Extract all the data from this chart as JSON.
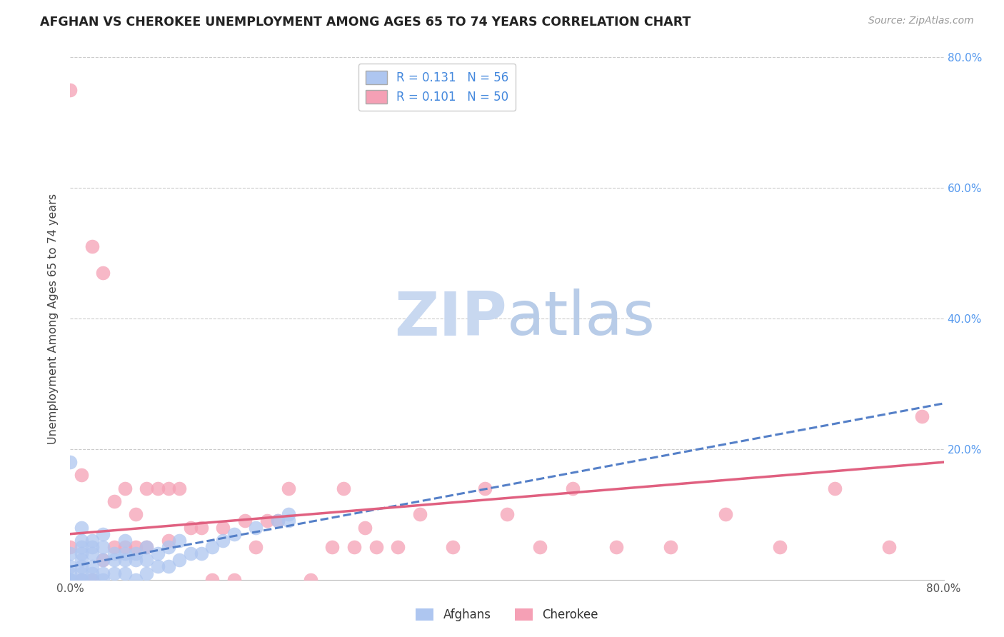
{
  "title": "AFGHAN VS CHEROKEE UNEMPLOYMENT AMONG AGES 65 TO 74 YEARS CORRELATION CHART",
  "source": "Source: ZipAtlas.com",
  "ylabel": "Unemployment Among Ages 65 to 74 years",
  "xlim": [
    0,
    0.8
  ],
  "ylim": [
    0,
    0.8
  ],
  "xticks": [
    0.0,
    0.2,
    0.4,
    0.6,
    0.8
  ],
  "xticklabels": [
    "0.0%",
    "",
    "",
    "",
    "80.0%"
  ],
  "right_yticklabels": [
    "20.0%",
    "40.0%",
    "60.0%",
    "80.0%"
  ],
  "right_yticks": [
    0.2,
    0.4,
    0.6,
    0.8
  ],
  "afghan_R": 0.131,
  "afghan_N": 56,
  "cherokee_R": 0.101,
  "cherokee_N": 50,
  "afghan_color": "#aec6f0",
  "cherokee_color": "#f5a0b5",
  "afghan_line_color": "#5580c8",
  "cherokee_line_color": "#e06080",
  "watermark_zip": "ZIP",
  "watermark_atlas": "atlas",
  "watermark_color_zip": "#c8d8f0",
  "watermark_color_atlas": "#c0d8e8",
  "background_color": "#ffffff",
  "grid_color": "#cccccc",
  "afghan_x": [
    0.0,
    0.0,
    0.0,
    0.0,
    0.0,
    0.0,
    0.0,
    0.0,
    0.01,
    0.01,
    0.01,
    0.01,
    0.01,
    0.01,
    0.01,
    0.01,
    0.02,
    0.02,
    0.02,
    0.02,
    0.02,
    0.03,
    0.03,
    0.03,
    0.03,
    0.04,
    0.04,
    0.05,
    0.05,
    0.05,
    0.06,
    0.06,
    0.07,
    0.07,
    0.08,
    0.08,
    0.09,
    0.09,
    0.1,
    0.1,
    0.11,
    0.12,
    0.13,
    0.14,
    0.15,
    0.17,
    0.19,
    0.2,
    0.2,
    0.01,
    0.02,
    0.03,
    0.04,
    0.05,
    0.06,
    0.07
  ],
  "afghan_y": [
    0.0,
    0.0,
    0.0,
    0.0,
    0.01,
    0.02,
    0.04,
    0.18,
    0.0,
    0.0,
    0.01,
    0.02,
    0.03,
    0.04,
    0.05,
    0.08,
    0.0,
    0.01,
    0.02,
    0.04,
    0.06,
    0.0,
    0.01,
    0.03,
    0.07,
    0.01,
    0.04,
    0.01,
    0.03,
    0.06,
    0.0,
    0.03,
    0.01,
    0.03,
    0.02,
    0.04,
    0.02,
    0.05,
    0.03,
    0.06,
    0.04,
    0.04,
    0.05,
    0.06,
    0.07,
    0.08,
    0.09,
    0.09,
    0.1,
    0.06,
    0.05,
    0.05,
    0.03,
    0.04,
    0.04,
    0.05
  ],
  "cherokee_x": [
    0.0,
    0.0,
    0.01,
    0.01,
    0.02,
    0.02,
    0.03,
    0.03,
    0.04,
    0.04,
    0.05,
    0.05,
    0.06,
    0.06,
    0.07,
    0.07,
    0.08,
    0.09,
    0.09,
    0.1,
    0.11,
    0.12,
    0.13,
    0.14,
    0.15,
    0.16,
    0.17,
    0.18,
    0.19,
    0.2,
    0.22,
    0.24,
    0.25,
    0.26,
    0.27,
    0.28,
    0.3,
    0.32,
    0.35,
    0.38,
    0.4,
    0.43,
    0.46,
    0.5,
    0.55,
    0.6,
    0.65,
    0.7,
    0.75,
    0.78
  ],
  "cherokee_y": [
    0.05,
    0.75,
    0.0,
    0.16,
    0.0,
    0.51,
    0.03,
    0.47,
    0.05,
    0.12,
    0.05,
    0.14,
    0.05,
    0.1,
    0.05,
    0.14,
    0.14,
    0.06,
    0.14,
    0.14,
    0.08,
    0.08,
    0.0,
    0.08,
    0.0,
    0.09,
    0.05,
    0.09,
    0.09,
    0.14,
    0.0,
    0.05,
    0.14,
    0.05,
    0.08,
    0.05,
    0.05,
    0.1,
    0.05,
    0.14,
    0.1,
    0.05,
    0.14,
    0.05,
    0.05,
    0.1,
    0.05,
    0.14,
    0.05,
    0.25
  ],
  "afghan_trend_x": [
    0.0,
    0.8
  ],
  "afghan_trend_y": [
    0.02,
    0.27
  ],
  "cherokee_trend_x": [
    0.0,
    0.8
  ],
  "cherokee_trend_y": [
    0.07,
    0.18
  ]
}
